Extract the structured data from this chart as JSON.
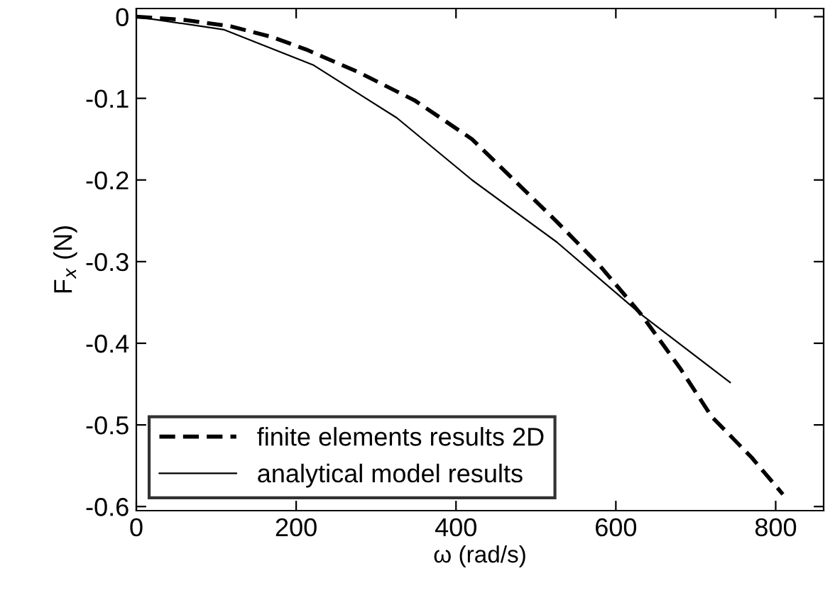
{
  "chart_data": {
    "type": "line",
    "xlabel": "ω (rad/s)",
    "ylabel": "F$_{x}$ (N)",
    "xlim": [
      0,
      860
    ],
    "ylim": [
      -0.605,
      0.01
    ],
    "xticks": [
      0,
      200,
      400,
      600,
      800
    ],
    "yticks": [
      0,
      -0.1,
      -0.2,
      -0.3,
      -0.4,
      -0.5,
      -0.6
    ],
    "grid": false,
    "legend": "bottom left",
    "series": [
      {
        "name": "finite elements results 2D",
        "color": "#000000",
        "line_style": "dashed",
        "x": [
          0,
          60,
          119,
          170,
          212,
          278,
          349,
          420,
          526,
          580,
          632,
          680,
          720,
          770,
          809
        ],
        "values": [
          0,
          -0.004,
          -0.012,
          -0.025,
          -0.04,
          -0.068,
          -0.103,
          -0.15,
          -0.251,
          -0.305,
          -0.365,
          -0.43,
          -0.49,
          -0.54,
          -0.585
        ]
      },
      {
        "name": "analytical model results",
        "color": "#000000",
        "line_style": "solid",
        "x": [
          0,
          110,
          221,
          326,
          420,
          526,
          632,
          743
        ],
        "values": [
          0,
          -0.016,
          -0.059,
          -0.124,
          -0.2,
          -0.276,
          -0.365,
          -0.448
        ]
      }
    ]
  }
}
